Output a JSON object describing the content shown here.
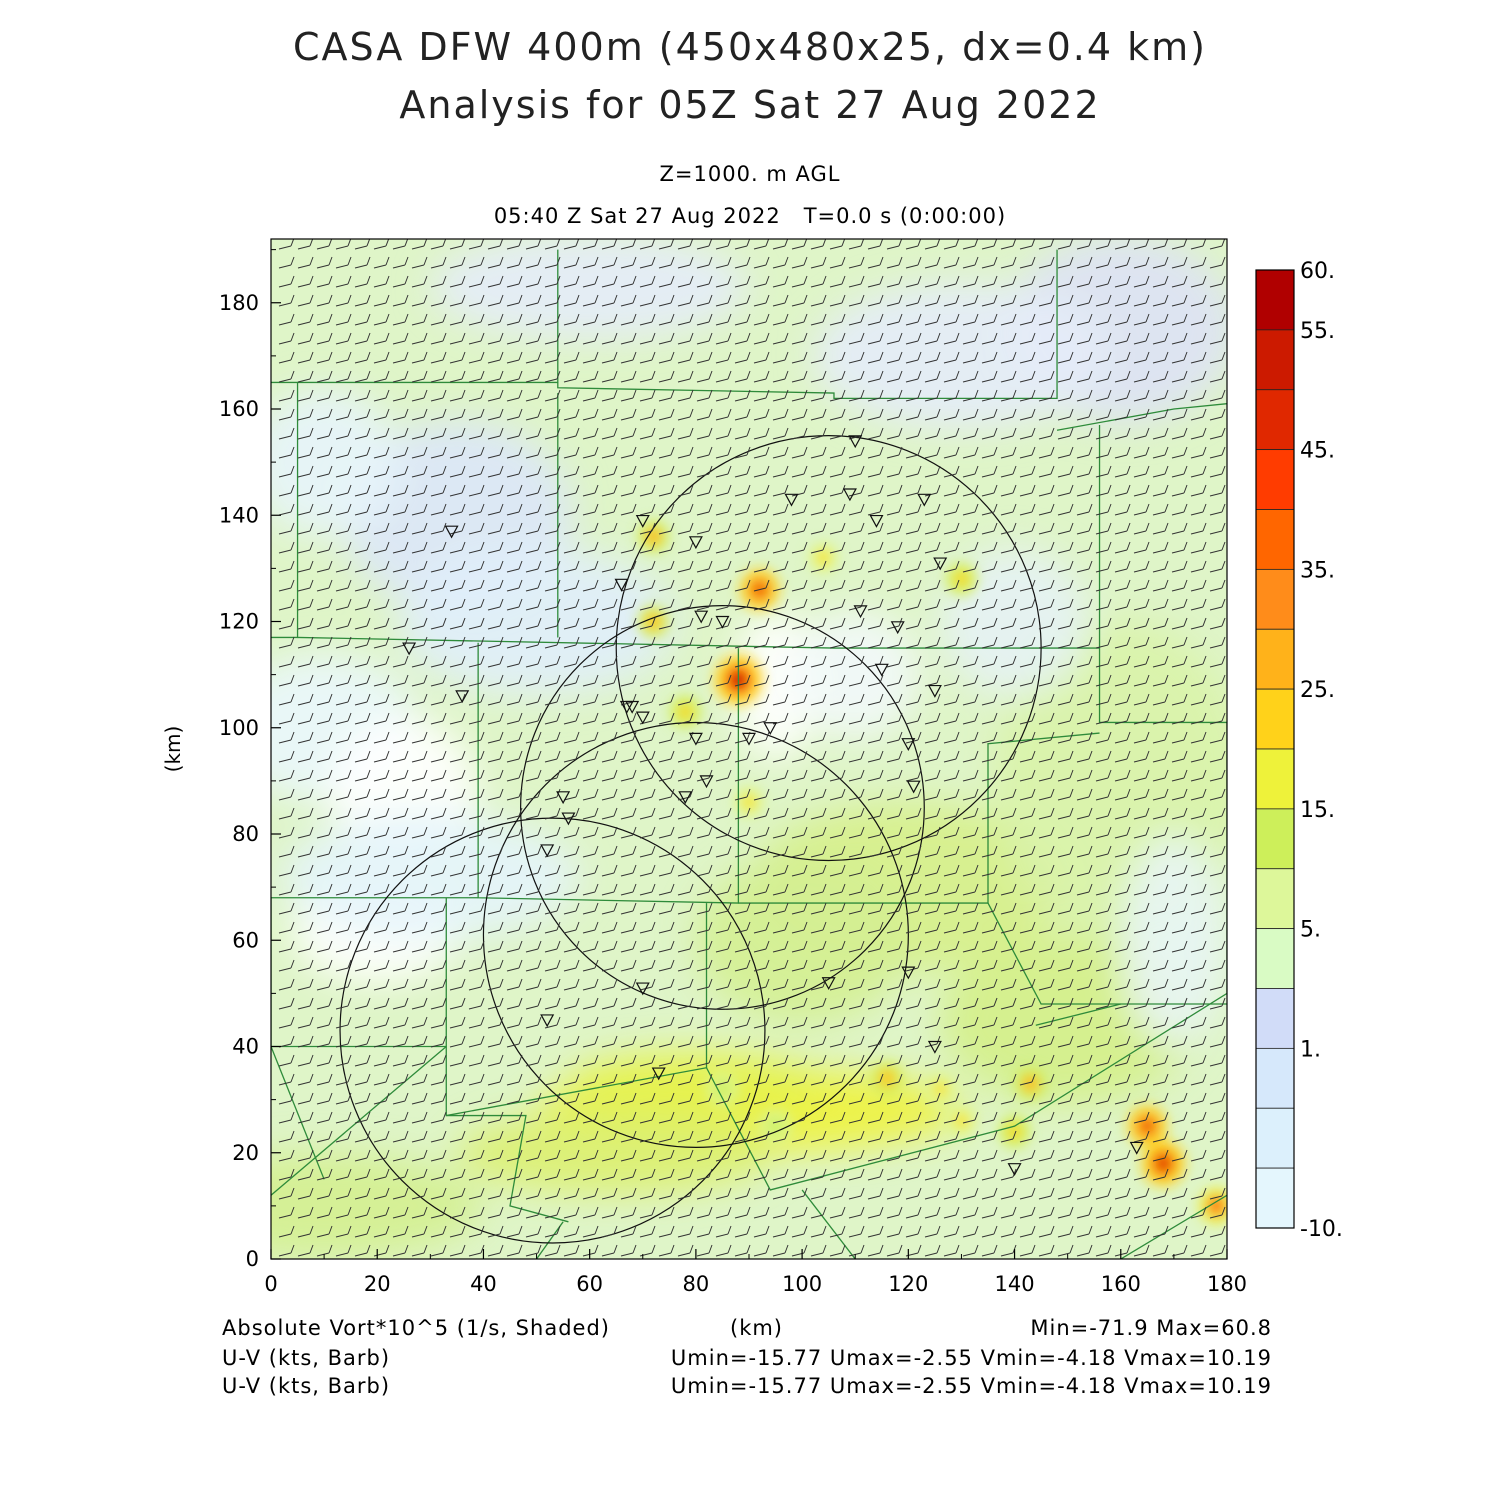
{
  "header": {
    "title_line1": "CASA DFW 400m (450x480x25, dx=0.4 km)",
    "title_line2": "Analysis for 05Z Sat 27 Aug 2022",
    "level": "Z=1000. m AGL",
    "valid_time": "05:40 Z Sat 27 Aug 2022   T=0.0 s (0:00:00)"
  },
  "footer": {
    "field1": "Absolute Vort*10^5 (1/s, Shaded)",
    "xunit": "(km)",
    "minmax": "Min=-71.9 Max=60.8",
    "field2": "U-V (kts, Barb)",
    "uv_stats2": "Umin=-15.77 Umax=-2.55 Vmin=-4.18 Vmax=10.19",
    "field3": "U-V (kts, Barb)",
    "uv_stats3": "Umin=-15.77 Umax=-2.55 Vmin=-4.18 Vmax=10.19"
  },
  "chart_data": {
    "type": "heatmap",
    "title": "CASA DFW 400m (450x480x25, dx=0.4 km)",
    "xlabel": "(km)",
    "ylabel": "(km)",
    "xlim": [
      0,
      180
    ],
    "ylim": [
      0,
      192
    ],
    "x_ticks": [
      0,
      20,
      40,
      60,
      80,
      100,
      120,
      140,
      160,
      180
    ],
    "y_ticks": [
      0,
      20,
      40,
      60,
      80,
      100,
      120,
      140,
      160,
      180
    ],
    "field_min": -71.9,
    "field_max": 60.8,
    "colorbar": {
      "labels": [
        {
          "value": 60,
          "text": "60."
        },
        {
          "value": 55,
          "text": "55."
        },
        {
          "value": 45,
          "text": "45."
        },
        {
          "value": 35,
          "text": "35."
        },
        {
          "value": 25,
          "text": "25."
        },
        {
          "value": 15,
          "text": "15."
        },
        {
          "value": 5,
          "text": "5."
        },
        {
          "value": 1,
          "text": "1."
        },
        {
          "value": -10,
          "text": "-10."
        }
      ],
      "colors": [
        "#b00000",
        "#cc1a00",
        "#e02800",
        "#ff3c00",
        "#ff6600",
        "#ff8c1a",
        "#ffb21a",
        "#ffd21a",
        "#eef23a",
        "#cdef5a",
        "#ddf79a",
        "#d9fbc4",
        "#d1dcf8",
        "#d6e8fb",
        "#dcf0fc",
        "#e4f6fd"
      ]
    },
    "radar_rings": [
      {
        "center": [
          105,
          115
        ],
        "radius_km": 40
      },
      {
        "center": [
          85,
          85
        ],
        "radius_km": 38
      },
      {
        "center": [
          80,
          61
        ],
        "radius_km": 40
      },
      {
        "center": [
          53,
          43
        ],
        "radius_km": 40
      }
    ],
    "hotspots": [
      {
        "x": 88,
        "y": 109,
        "value": 55
      },
      {
        "x": 92,
        "y": 126,
        "value": 45
      },
      {
        "x": 168,
        "y": 18,
        "value": 50
      },
      {
        "x": 165,
        "y": 25,
        "value": 45
      },
      {
        "x": 178,
        "y": 10,
        "value": 40
      },
      {
        "x": 143,
        "y": 33,
        "value": 30
      },
      {
        "x": 116,
        "y": 34,
        "value": 28
      },
      {
        "x": 72,
        "y": 136,
        "value": 30
      },
      {
        "x": 72,
        "y": 120,
        "value": 28
      },
      {
        "x": 78,
        "y": 103,
        "value": 25
      },
      {
        "x": 90,
        "y": 86,
        "value": 22
      },
      {
        "x": 140,
        "y": 24,
        "value": 25
      },
      {
        "x": 130,
        "y": 26,
        "value": 22
      },
      {
        "x": 126,
        "y": 32,
        "value": 22
      },
      {
        "x": 130,
        "y": 128,
        "value": 25
      },
      {
        "x": 104,
        "y": 132,
        "value": 22
      },
      {
        "x": 95,
        "y": 25,
        "value": 14
      },
      {
        "x": 85,
        "y": 32,
        "value": 14
      }
    ],
    "wind": {
      "u": -9,
      "v": 3,
      "units": "kts"
    }
  }
}
